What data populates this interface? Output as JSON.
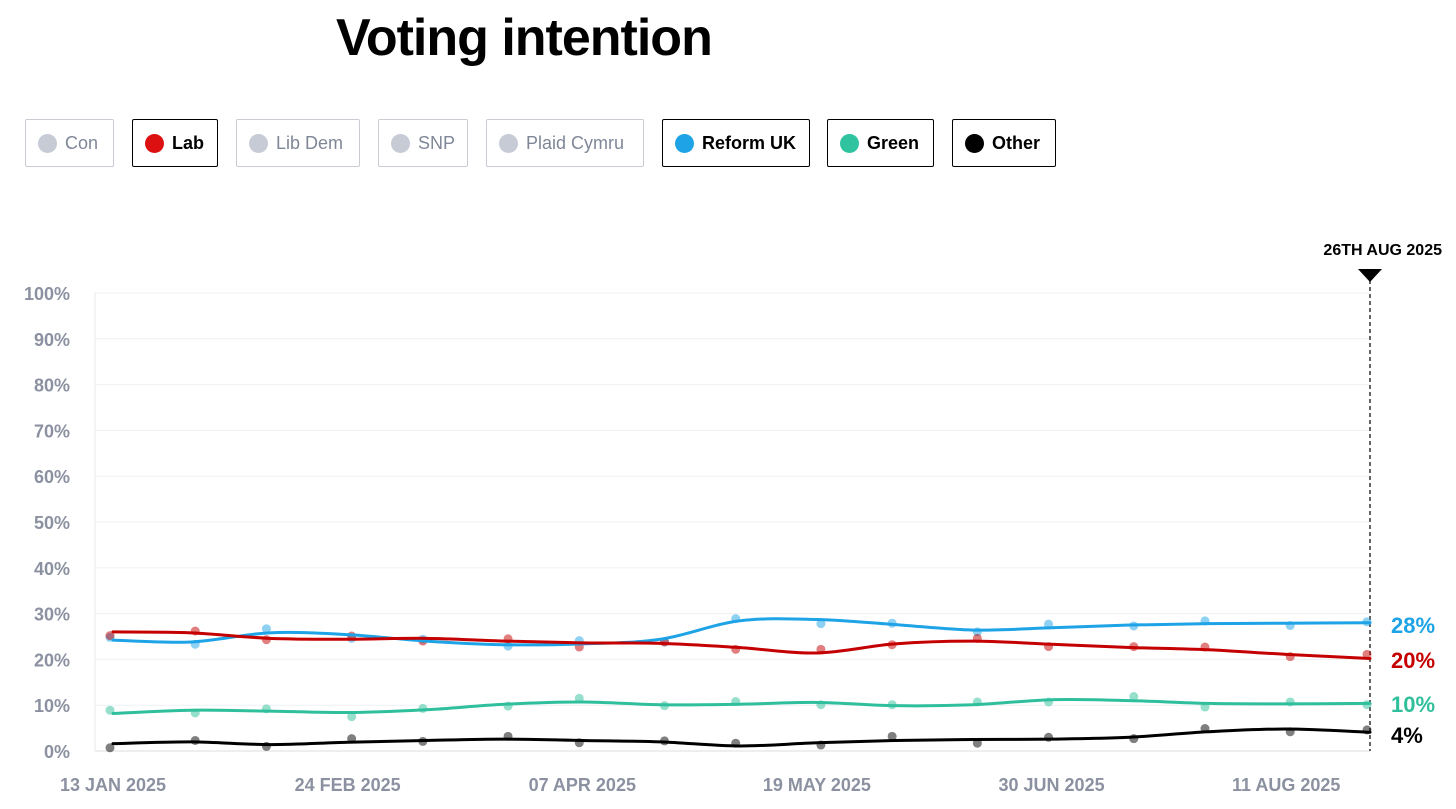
{
  "title": "Voting intention",
  "legend": [
    {
      "label": "Con",
      "active": false,
      "color": "#c6cbd5"
    },
    {
      "label": "Lab",
      "active": true,
      "color": "#dc1010"
    },
    {
      "label": "Lib Dem",
      "active": false,
      "color": "#c6cbd5"
    },
    {
      "label": "SNP",
      "active": false,
      "color": "#c6cbd5"
    },
    {
      "label": "Plaid Cymru",
      "active": false,
      "color": "#c6cbd5"
    },
    {
      "label": "Reform UK",
      "active": true,
      "color": "#1ea3e6"
    },
    {
      "label": "Green",
      "active": true,
      "color": "#2fc3a0"
    },
    {
      "label": "Other",
      "active": true,
      "color": "#000000"
    }
  ],
  "chart_data": {
    "type": "line",
    "title": "Voting intention",
    "xlabel": "",
    "ylabel": "",
    "ylim": [
      0,
      100
    ],
    "y_ticks": [
      "0%",
      "10%",
      "20%",
      "30%",
      "40%",
      "50%",
      "60%",
      "70%",
      "80%",
      "90%",
      "100%"
    ],
    "x_ticks": [
      "13 JAN 2025",
      "24 FEB 2025",
      "07 APR 2025",
      "19 MAY 2025",
      "30 JUN 2025",
      "11 AUG 2025"
    ],
    "x": [
      0,
      14,
      28,
      42,
      56,
      70,
      84,
      98,
      112,
      126,
      140,
      154,
      168,
      182,
      196,
      210,
      225
    ],
    "marker": {
      "label": "26TH AUG 2025",
      "x": 225
    },
    "series": [
      {
        "name": "Reform UK",
        "color": "#1ea3e6",
        "values": [
          24.2,
          23.8,
          25.8,
          25.4,
          24.0,
          23.2,
          23.4,
          24.4,
          28.4,
          28.7,
          27.6,
          26.4,
          26.9,
          27.5,
          27.8,
          27.9,
          28.0
        ],
        "end_label": "28%"
      },
      {
        "name": "Lab",
        "color": "#c40000",
        "values": [
          26.0,
          25.8,
          24.6,
          24.4,
          24.6,
          24.0,
          23.6,
          23.5,
          22.6,
          21.4,
          23.4,
          24.0,
          23.3,
          22.6,
          22.1,
          21.1,
          20.2
        ],
        "end_label": "20%"
      },
      {
        "name": "Green",
        "color": "#2fbf9c",
        "values": [
          8.2,
          8.9,
          8.7,
          8.4,
          9.0,
          10.2,
          10.7,
          10.1,
          10.2,
          10.6,
          9.9,
          10.1,
          11.2,
          11.0,
          10.4,
          10.3,
          10.4
        ],
        "end_label": "10%"
      },
      {
        "name": "Other",
        "color": "#000000",
        "values": [
          1.6,
          2.0,
          1.4,
          1.9,
          2.3,
          2.6,
          2.3,
          2.0,
          1.1,
          1.8,
          2.3,
          2.5,
          2.6,
          3.0,
          4.2,
          4.8,
          4.1
        ],
        "end_label": "4%"
      }
    ]
  }
}
